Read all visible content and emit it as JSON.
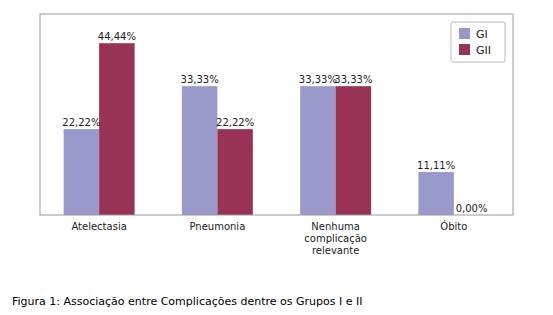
{
  "chart_data": {
    "type": "bar",
    "title": "Figura 1: Associação entre Complicações dentre os Grupos I e II",
    "categories": [
      "Atelectasia",
      "Pneumonia",
      "Nenhuma\ncomplicação\nrelevante",
      "Óbito"
    ],
    "series": [
      {
        "name": "GI",
        "color": "#9999cc",
        "values": [
          22.22,
          33.33,
          33.33,
          11.11
        ],
        "value_labels": [
          "22,22%",
          "33,33%",
          "33,33%",
          "11,11%"
        ]
      },
      {
        "name": "GII",
        "color": "#993355",
        "values": [
          44.44,
          22.22,
          33.33,
          0.0
        ],
        "value_labels": [
          "44,44%",
          "22,22%",
          "33,33%",
          "0,00%"
        ]
      }
    ],
    "ylim": [
      0,
      52
    ],
    "grid": false,
    "legend": "upper right",
    "data_labels": true,
    "tick_labels": "x"
  }
}
